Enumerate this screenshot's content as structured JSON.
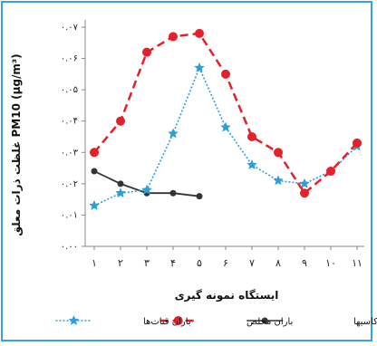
{
  "chart_data": {
    "type": "line",
    "title": "",
    "xlabel": "ایستگاه نمونه گیری",
    "ylabel": "غلظت ذرات معلق PM10 (μg/m³)",
    "ylim": [
      0,
      0.07
    ],
    "yticks": [
      0,
      0.01,
      0.02,
      0.03,
      0.04,
      0.05,
      0.06,
      0.07
    ],
    "ytick_labels": [
      "۰.۰۰",
      "۰.۰۱",
      "۰.۰۲",
      "۰.۰۳",
      "۰.۰۴",
      "۰.۰۵",
      "۰.۰۶",
      "۰.۰۷"
    ],
    "categories": [
      "۱",
      "۲",
      "۳",
      "۴",
      "۵",
      "۶",
      "۷",
      "۸",
      "۹",
      "۱۰",
      "۱۱"
    ],
    "grid": false,
    "legend_position": "bottom",
    "series": [
      {
        "name": "باران قنات‌ها",
        "color": "#2b9fd8",
        "style": "dotted",
        "marker": "star",
        "values": [
          0.013,
          0.017,
          0.018,
          0.036,
          0.057,
          0.038,
          0.026,
          0.021,
          0.02,
          0.024,
          0.032
        ]
      },
      {
        "name": "باران محلص",
        "color": "#e4202a",
        "style": "dashed",
        "marker": "circle",
        "values": [
          0.03,
          0.04,
          0.062,
          0.067,
          0.068,
          0.055,
          0.035,
          0.03,
          0.017,
          0.024,
          0.033
        ]
      },
      {
        "name": "باران قهوه کاسیها",
        "color": "#333333",
        "style": "solid",
        "marker": "circle",
        "values": [
          0.024,
          0.02,
          0.017,
          0.017,
          0.016,
          null,
          null,
          null,
          null,
          null,
          null
        ]
      }
    ]
  }
}
